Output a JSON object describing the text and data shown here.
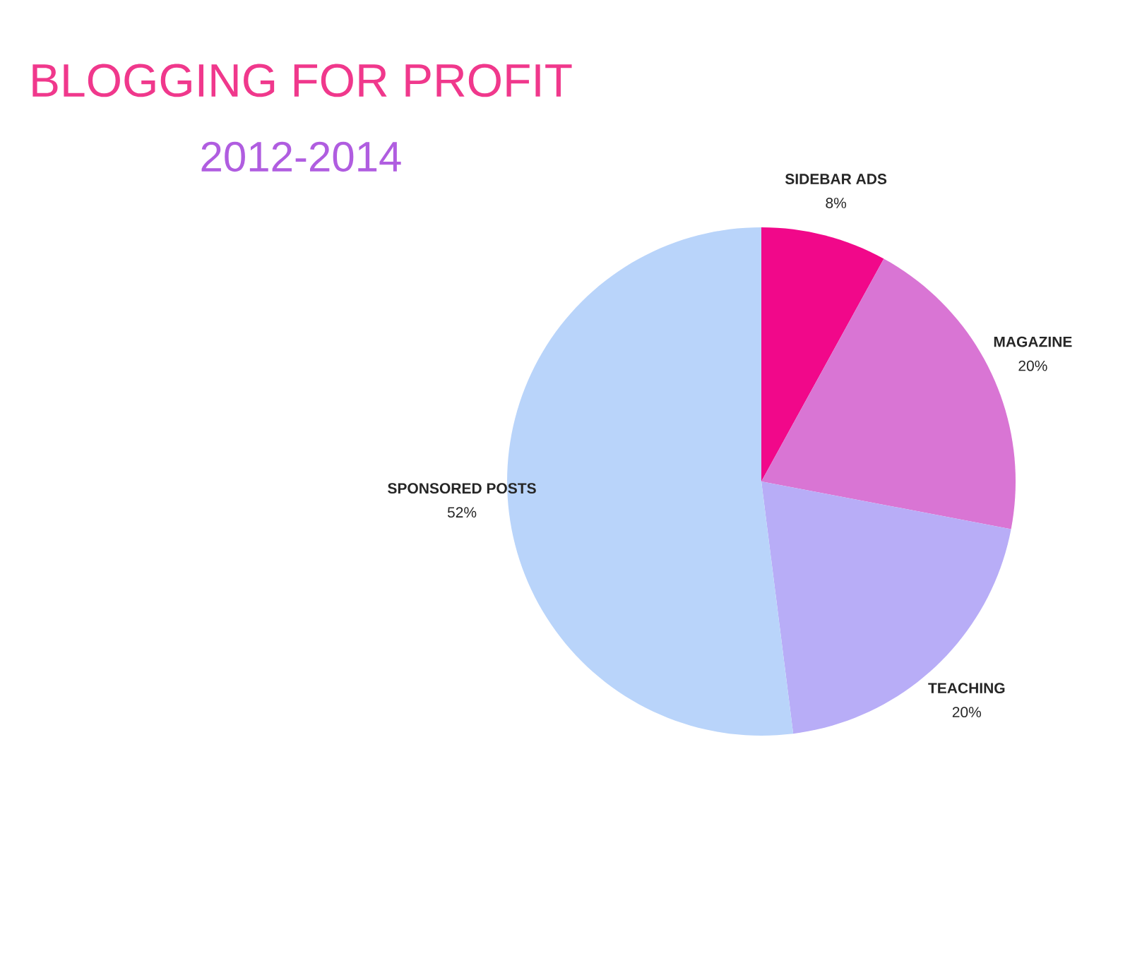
{
  "chart_data": {
    "type": "pie",
    "title": "BLOGGING FOR PROFIT",
    "subtitle": "2012-2014",
    "categories": [
      "SIDEBAR ADS",
      "MAGAZINE",
      "TEACHING",
      "SPONSORED POSTS"
    ],
    "values": [
      8,
      20,
      20,
      52
    ],
    "value_labels": [
      "8%",
      "20%",
      "20%",
      "52%"
    ],
    "colors": [
      "#f1088a",
      "#d975d4",
      "#b8adf7",
      "#b9d4fa"
    ]
  }
}
